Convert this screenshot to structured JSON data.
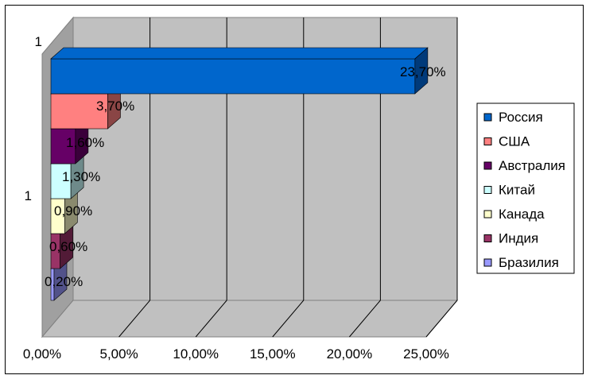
{
  "chart_data": {
    "type": "bar",
    "orientation": "horizontal",
    "three_d": true,
    "categories": [
      "1"
    ],
    "series": [
      {
        "name": "Россия",
        "values": [
          23.7
        ],
        "label": "23,70%",
        "color": "#0066CC",
        "side_color": "#003A7A"
      },
      {
        "name": "США",
        "values": [
          3.7
        ],
        "label": "3,70%",
        "color": "#FF8080",
        "side_color": "#8A4545"
      },
      {
        "name": "Австралия",
        "values": [
          1.6
        ],
        "label": "1,60%",
        "color": "#660066",
        "side_color": "#3A003A"
      },
      {
        "name": "Китай",
        "values": [
          1.3
        ],
        "label": "1,30%",
        "color": "#CCFFFF",
        "side_color": "#6E8A8A"
      },
      {
        "name": "Канада",
        "values": [
          0.9
        ],
        "label": "0,90%",
        "color": "#FFFFCC",
        "side_color": "#8A8A6E"
      },
      {
        "name": "Индия",
        "values": [
          0.6
        ],
        "label": "0,60%",
        "color": "#993366",
        "side_color": "#521B37"
      },
      {
        "name": "Бразилия",
        "values": [
          0.2
        ],
        "label": "0,20%",
        "color": "#9999FF",
        "side_color": "#52528A"
      }
    ],
    "x_ticks": [
      "0,00%",
      "5,00%",
      "10,00%",
      "15,00%",
      "20,00%",
      "25,00%"
    ],
    "xlim": [
      0,
      25
    ],
    "xlabel": "",
    "ylabel": "",
    "title": "",
    "grid": true,
    "wall_color": "#C0C0C0",
    "floor_color": "#A0A0A0",
    "legend_position": "right"
  }
}
